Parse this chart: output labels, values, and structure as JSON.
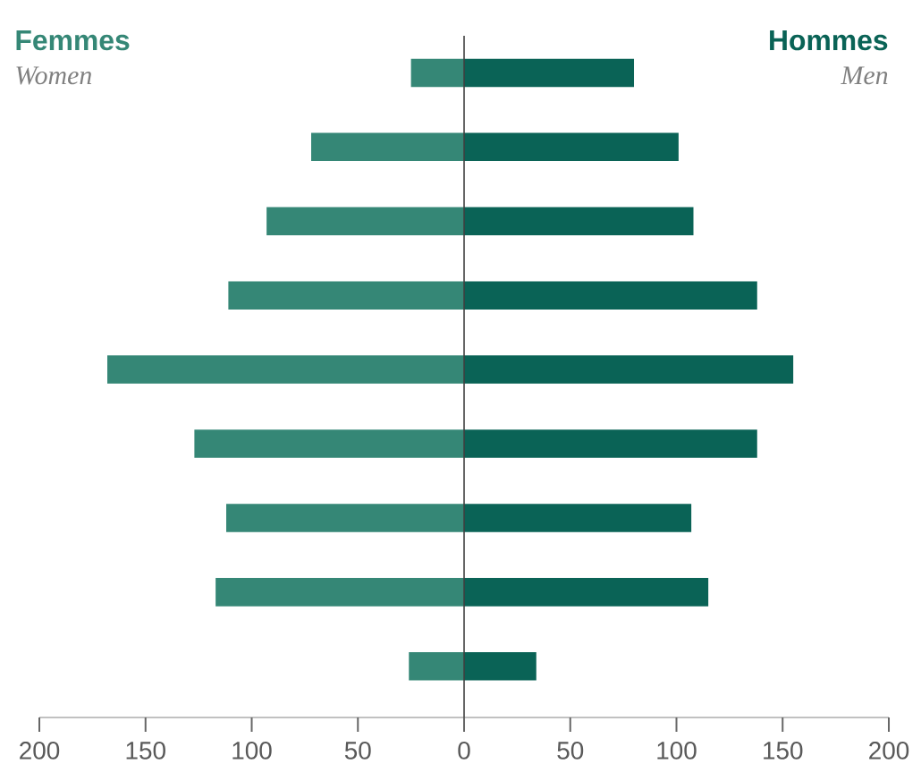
{
  "chart_data": {
    "type": "bar",
    "orientation": "horizontal",
    "stacked": true,
    "categories": [
      null,
      null,
      null,
      null,
      null,
      null,
      null,
      null,
      null
    ],
    "series": [
      {
        "name": "Femmes",
        "color": "#358776",
        "values": [
          -25,
          -72,
          -93,
          -111,
          -168,
          -127,
          -112,
          -117,
          -26
        ]
      },
      {
        "name": "Hommes",
        "color": "#0a6356",
        "values": [
          80,
          101,
          108,
          138,
          155,
          138,
          107,
          115,
          34
        ]
      }
    ],
    "annotations": [
      "Women",
      "Men"
    ],
    "xlim": [
      -200,
      200
    ],
    "xticks": [
      {
        "value": -200,
        "label": "200"
      },
      {
        "value": -150,
        "label": "150"
      },
      {
        "value": -100,
        "label": "100"
      },
      {
        "value": -50,
        "label": "50"
      },
      0,
      50,
      100,
      150,
      200
    ]
  }
}
